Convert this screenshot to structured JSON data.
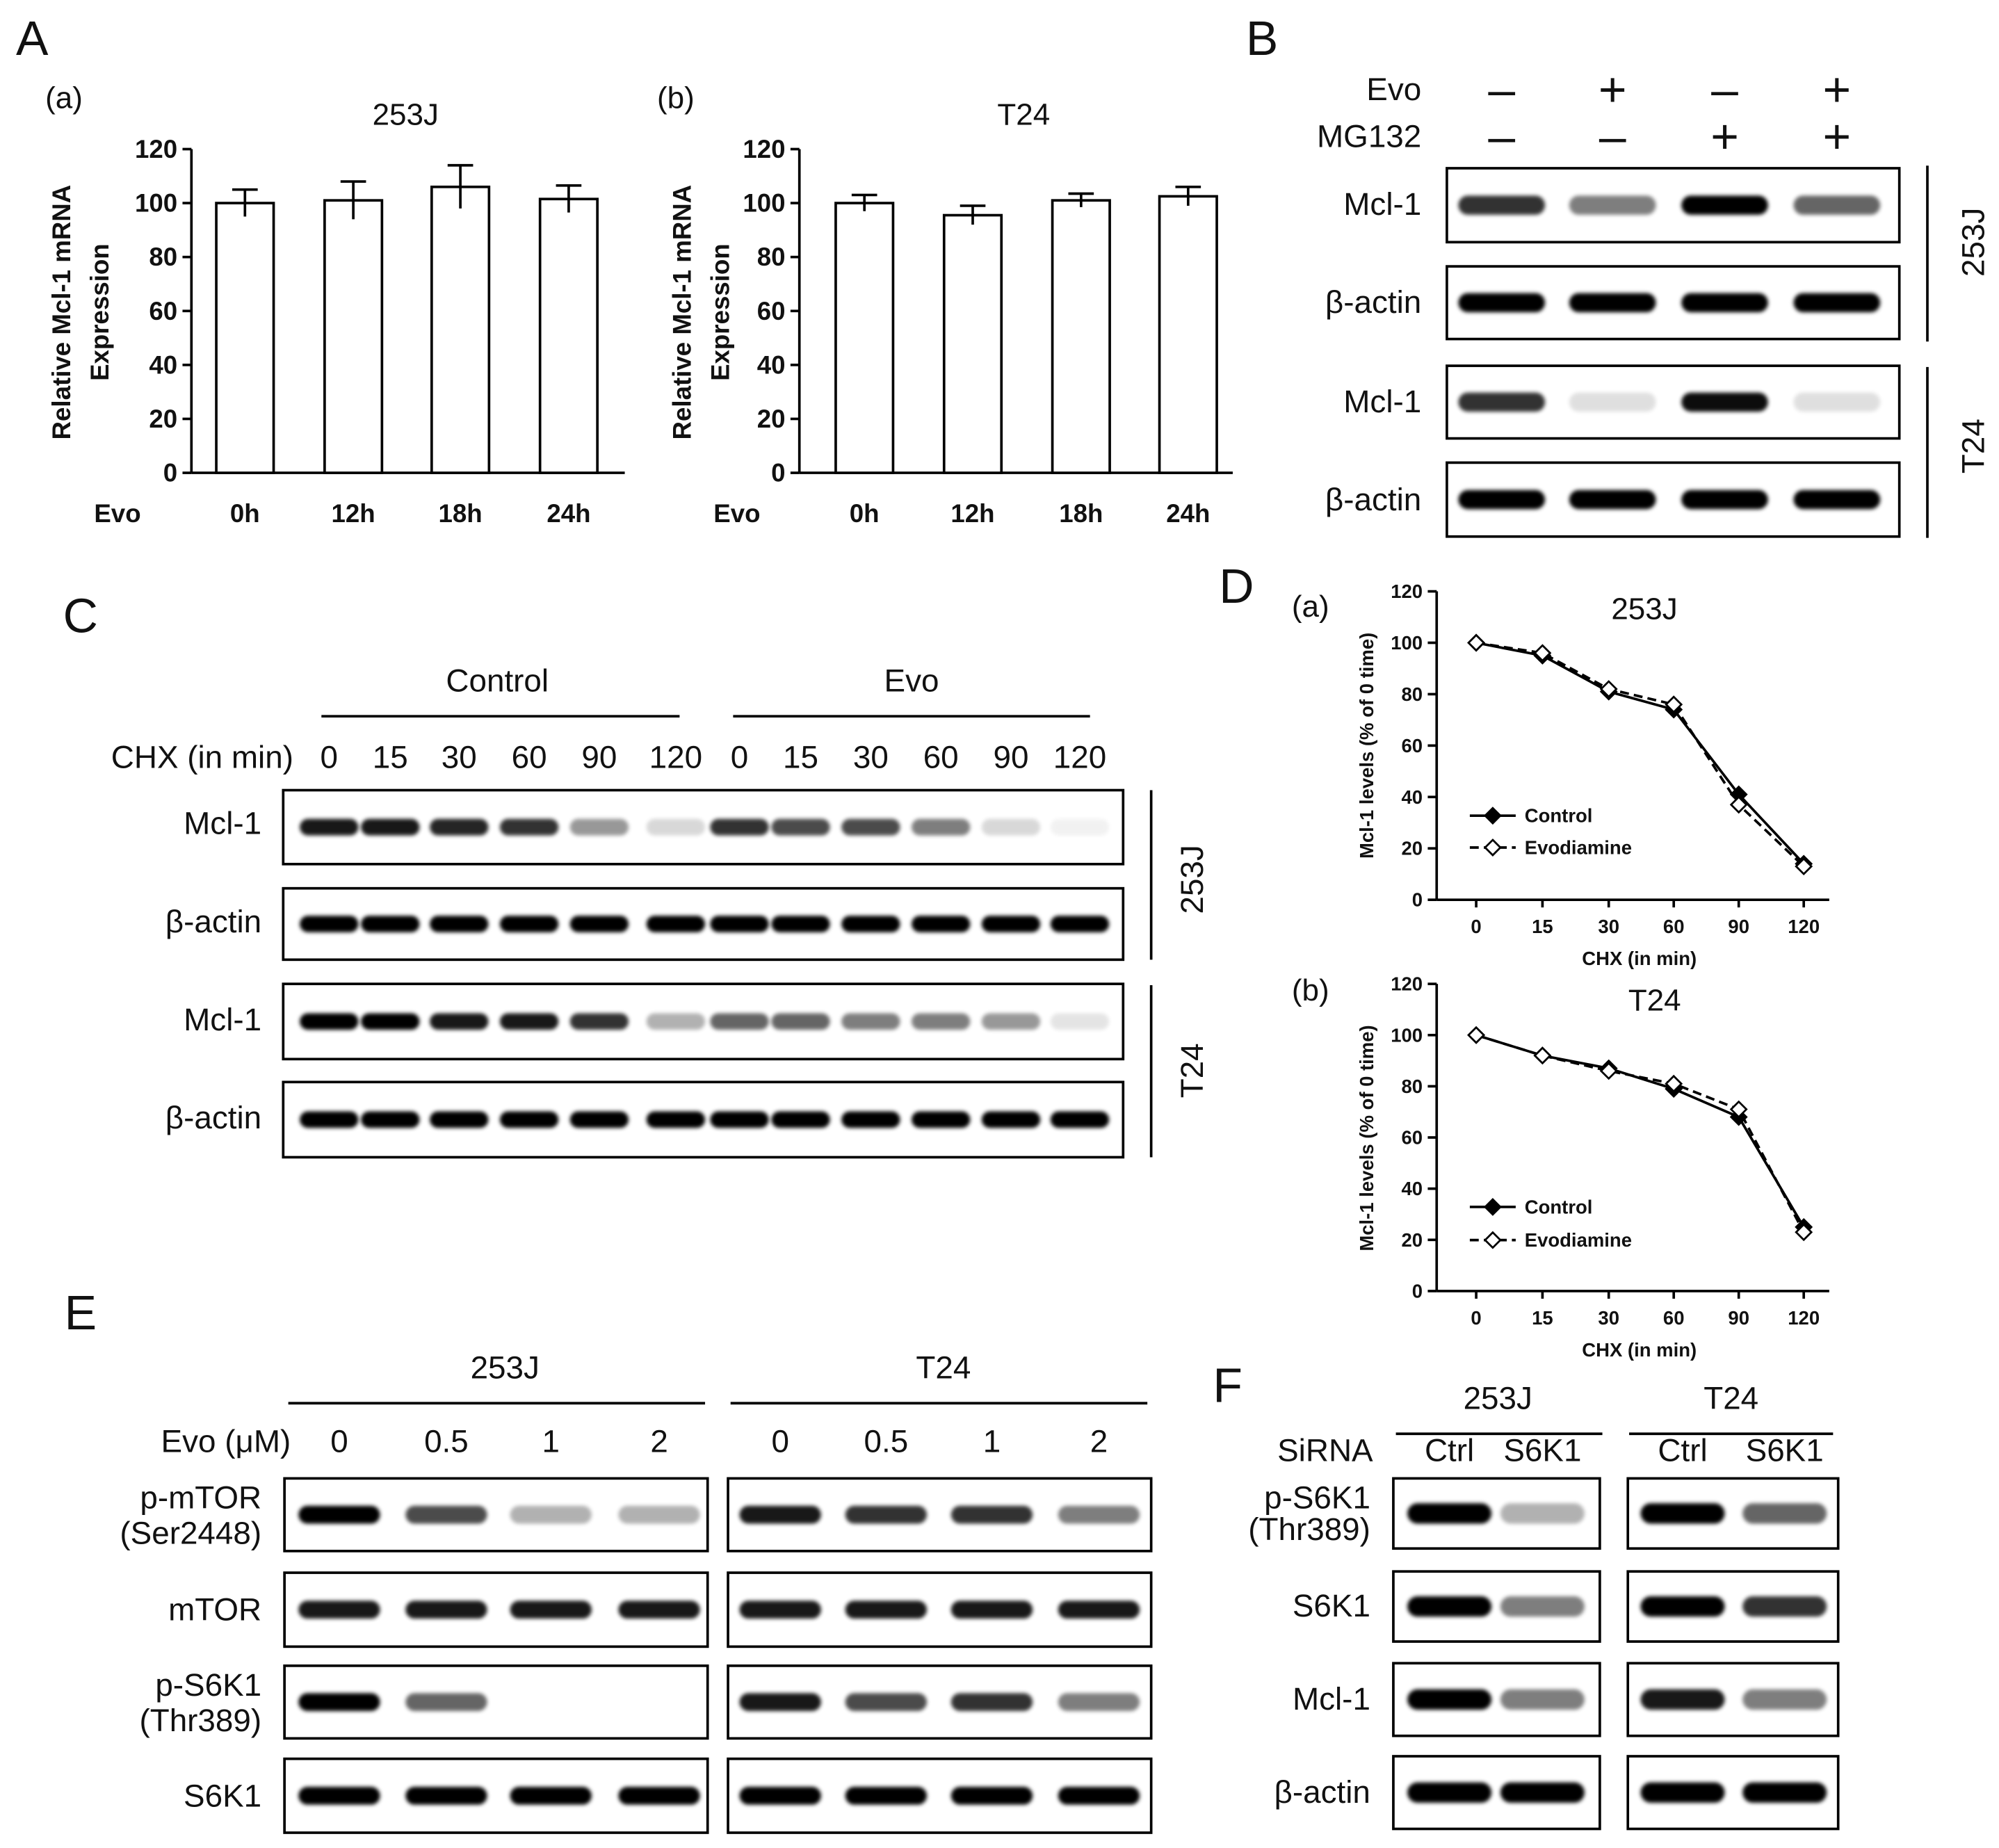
{
  "panel_labels": [
    "A",
    "B",
    "C",
    "D",
    "E",
    "F"
  ],
  "chart_data": [
    {
      "type": "bar",
      "panel": "(a)",
      "title": "253J",
      "ylabel": [
        "Relative Mcl-1 mRNA",
        "Expression"
      ],
      "xlabel": "Evo",
      "categories": [
        "0h",
        "12h",
        "18h",
        "24h"
      ],
      "values": [
        100,
        101,
        106,
        101.5
      ],
      "errors": [
        5,
        7,
        8,
        5
      ],
      "color": "#ffffff",
      "ylim": [
        0,
        120
      ],
      "yticks": [
        0,
        20,
        40,
        60,
        80,
        100,
        120
      ]
    },
    {
      "type": "bar",
      "panel": "(b)",
      "title": "T24",
      "ylabel": [
        "Relative Mcl-1 mRNA",
        "Expression"
      ],
      "xlabel": "Evo",
      "categories": [
        "0h",
        "12h",
        "18h",
        "24h"
      ],
      "values": [
        100,
        95.5,
        101,
        102.5
      ],
      "errors": [
        3,
        3.5,
        2.5,
        3.5
      ],
      "color": "#ffffff",
      "ylim": [
        0,
        120
      ],
      "yticks": [
        0,
        20,
        40,
        60,
        80,
        100,
        120
      ]
    },
    {
      "type": "line",
      "panel": "(a)",
      "title": "253J",
      "ylabel": [
        "Mcl-1 levels (% of 0 time)"
      ],
      "xlabel": "CHX (in min)",
      "categories": [
        "0",
        "15",
        "30",
        "60",
        "90",
        "120"
      ],
      "series": [
        {
          "name": "Control",
          "color": "#000000",
          "marker": "filled-diamond",
          "line_style": "solid",
          "values": [
            100,
            95,
            81,
            74,
            41,
            14
          ]
        },
        {
          "name": "Evodiamine",
          "color": "#000000",
          "marker": "open-diamond",
          "line_style": "dashed",
          "values": [
            100,
            96,
            82,
            76,
            37,
            13
          ]
        }
      ],
      "ylim": [
        0,
        120
      ],
      "yticks": [
        0,
        20,
        40,
        60,
        80,
        100,
        120
      ],
      "legend": "lower-left"
    },
    {
      "type": "line",
      "panel": "(b)",
      "title": "T24",
      "ylabel": [
        "Mcl-1 levels (% of 0 time)"
      ],
      "xlabel": "CHX (in min)",
      "categories": [
        "0",
        "15",
        "30",
        "60",
        "90",
        "120"
      ],
      "series": [
        {
          "name": "Control",
          "color": "#000000",
          "marker": "filled-diamond",
          "line_style": "solid",
          "values": [
            100,
            92,
            87,
            79,
            68,
            25
          ]
        },
        {
          "name": "Evodiamine",
          "color": "#000000",
          "marker": "open-diamond",
          "line_style": "dashed",
          "values": [
            100,
            92,
            86,
            81,
            71,
            23
          ]
        }
      ],
      "ylim": [
        0,
        120
      ],
      "yticks": [
        0,
        20,
        40,
        60,
        80,
        100,
        120
      ],
      "legend": "lower-left"
    }
  ],
  "blot_B": {
    "treatments": [
      {
        "name": "Evo",
        "signs": [
          "–",
          "+",
          "–",
          "+"
        ]
      },
      {
        "name": "MG132",
        "signs": [
          "–",
          "–",
          "+",
          "+"
        ]
      }
    ],
    "rows": [
      [
        "Mcl-1"
      ],
      [
        "β-actin"
      ],
      [
        "Mcl-1"
      ],
      [
        "β-actin"
      ]
    ],
    "cell_lines": [
      "253J",
      "T24"
    ]
  },
  "blot_C": {
    "groups": [
      "Control",
      "Evo"
    ],
    "axis_label": "CHX (in min)",
    "lanes": [
      "0",
      "15",
      "30",
      "60",
      "90",
      "120",
      "0",
      "15",
      "30",
      "60",
      "90",
      "120"
    ],
    "rows": [
      [
        "Mcl-1"
      ],
      [
        "β-actin"
      ],
      [
        "Mcl-1"
      ],
      [
        "β-actin"
      ]
    ],
    "cell_lines": [
      "253J",
      "T24"
    ]
  },
  "blot_E": {
    "groups": [
      "253J",
      "T24"
    ],
    "axis_label": "Evo (μM)",
    "lanes": [
      "0",
      "0.5",
      "1",
      "2",
      "0",
      "0.5",
      "1",
      "2"
    ],
    "rows": [
      [
        "p-mTOR",
        "(Ser2448)"
      ],
      [
        "mTOR"
      ],
      [
        "p-S6K1",
        "(Thr389)"
      ],
      [
        "S6K1"
      ]
    ]
  },
  "blot_F": {
    "groups": [
      "253J",
      "T24"
    ],
    "axis_label": "SiRNA",
    "lanes": [
      "Ctrl",
      "S6K1",
      "Ctrl",
      "S6K1"
    ],
    "rows": [
      [
        "p-S6K1",
        "(Thr389)"
      ],
      [
        "S6K1"
      ],
      [
        "Mcl-1"
      ],
      [
        "β-actin"
      ]
    ]
  }
}
